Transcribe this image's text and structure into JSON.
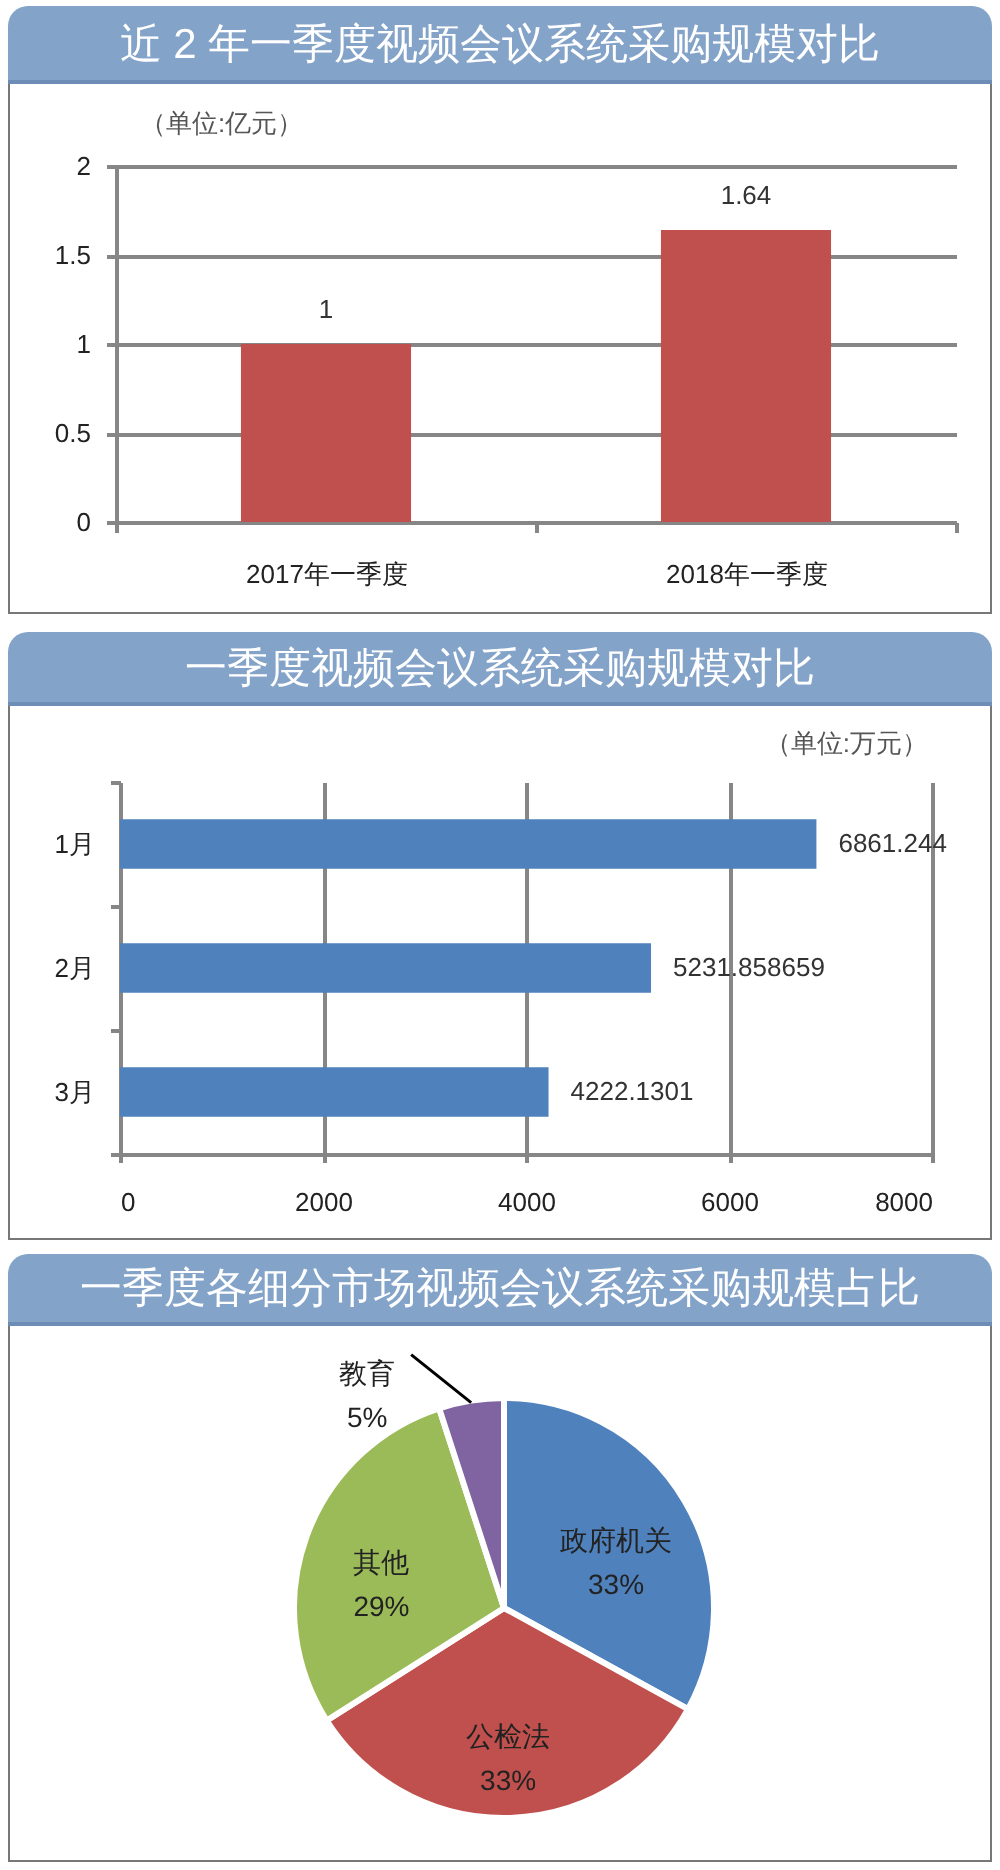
{
  "chart_data": [
    {
      "type": "bar",
      "title": "近 2 年一季度视频会议系统采购规模对比",
      "annotations": [
        "（单位:亿元）"
      ],
      "categories": [
        "2017年一季度",
        "2018年一季度"
      ],
      "values": [
        1,
        1.64
      ],
      "color": "#c0504d",
      "ylim": [
        0,
        2
      ],
      "yticks": [
        0,
        0.5,
        1,
        1.5,
        2
      ],
      "grid": "y",
      "data_labels": true
    },
    {
      "type": "bar",
      "orientation": "horizontal",
      "title": "一季度视频会议系统采购规模对比",
      "annotations": [
        "（单位:万元）"
      ],
      "categories": [
        "1月",
        "2月",
        "3月"
      ],
      "values": [
        6861.244,
        5231.858659,
        4222.1301
      ],
      "color": "#4f81bd",
      "xlim": [
        0,
        8000
      ],
      "xticks": [
        0,
        2000,
        4000,
        6000,
        8000
      ],
      "grid": "x",
      "data_labels": true
    },
    {
      "type": "pie",
      "title": "一季度各细分市场视频会议系统采购规模占比",
      "categories": [
        "政府机关",
        "公检法",
        "其他",
        "教育"
      ],
      "values": [
        33,
        33,
        29,
        5
      ],
      "value_labels": [
        "33%",
        "33%",
        "29%",
        "5%"
      ],
      "colors": [
        "#4f81bd",
        "#c0504d",
        "#9bbb59",
        "#8064a2"
      ]
    }
  ]
}
